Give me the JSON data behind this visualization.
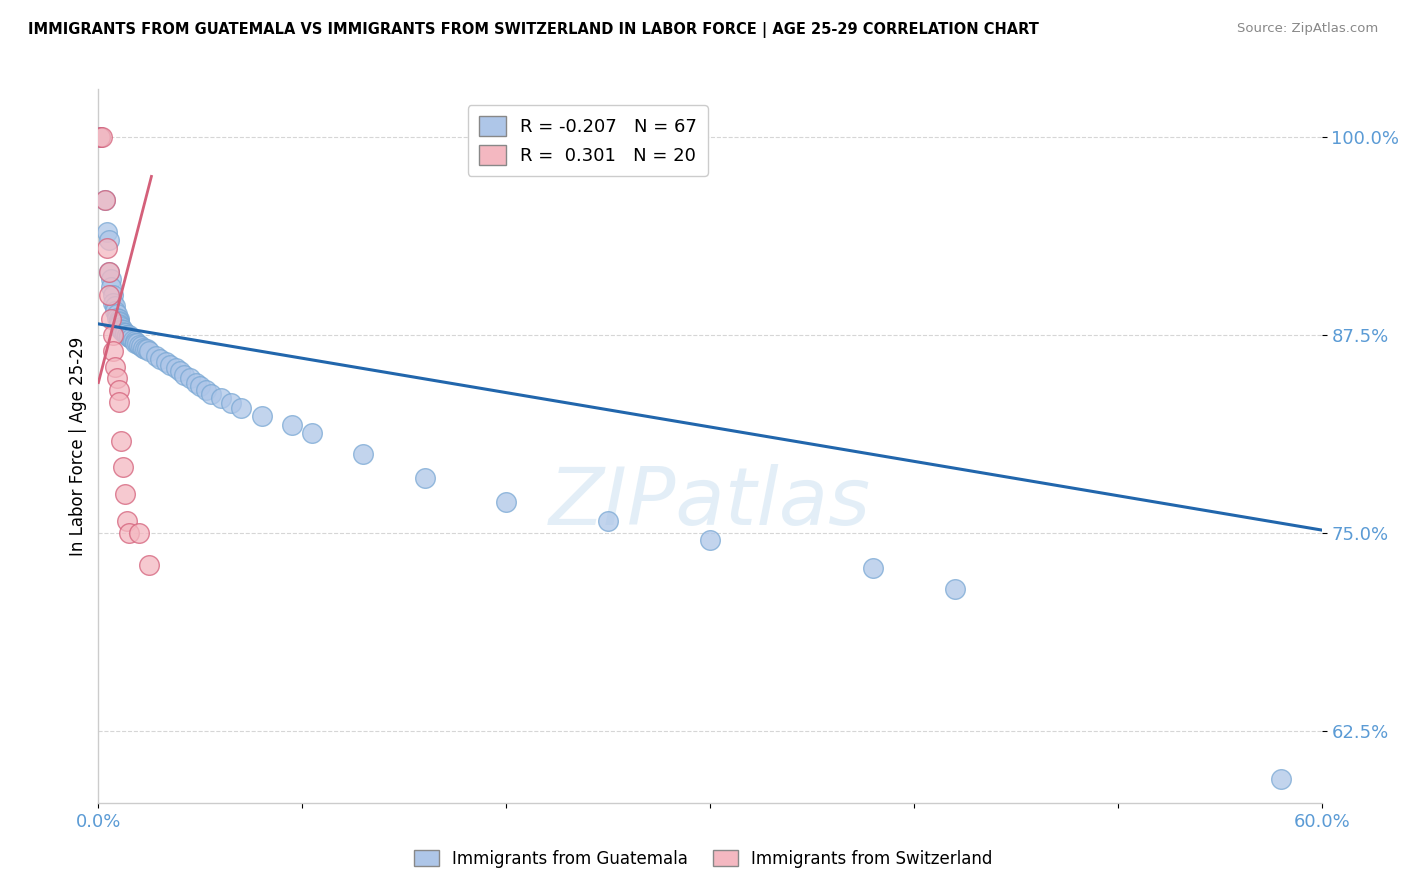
{
  "title": "IMMIGRANTS FROM GUATEMALA VS IMMIGRANTS FROM SWITZERLAND IN LABOR FORCE | AGE 25-29 CORRELATION CHART",
  "source": "Source: ZipAtlas.com",
  "ylabel": "In Labor Force | Age 25-29",
  "watermark": "ZIPatlas",
  "xlim": [
    0.0,
    0.6
  ],
  "ylim": [
    0.58,
    1.03
  ],
  "yticks": [
    0.625,
    0.75,
    0.875,
    1.0
  ],
  "ytick_labels": [
    "62.5%",
    "75.0%",
    "87.5%",
    "100.0%"
  ],
  "xticks": [
    0.0,
    0.1,
    0.2,
    0.3,
    0.4,
    0.5,
    0.6
  ],
  "xtick_labels": [
    "0.0%",
    "",
    "",
    "",
    "",
    "",
    "60.0%"
  ],
  "guatemala_R": -0.207,
  "guatemala_N": 67,
  "switzerland_R": 0.301,
  "switzerland_N": 20,
  "guatemala_color": "#aec6e8",
  "switzerland_color": "#f4b8c1",
  "trendline_blue": "#2166ac",
  "trendline_pink": "#d4607a",
  "axis_color": "#5b9bd5",
  "grid_color": "#cccccc",
  "guatemala_points": [
    [
      0.001,
      1.0
    ],
    [
      0.003,
      0.96
    ],
    [
      0.004,
      0.94
    ],
    [
      0.005,
      0.935
    ],
    [
      0.005,
      0.915
    ],
    [
      0.006,
      0.91
    ],
    [
      0.006,
      0.905
    ],
    [
      0.007,
      0.9
    ],
    [
      0.007,
      0.895
    ],
    [
      0.008,
      0.893
    ],
    [
      0.008,
      0.89
    ],
    [
      0.009,
      0.888
    ],
    [
      0.009,
      0.886
    ],
    [
      0.01,
      0.885
    ],
    [
      0.01,
      0.884
    ],
    [
      0.01,
      0.883
    ],
    [
      0.01,
      0.882
    ],
    [
      0.01,
      0.881
    ],
    [
      0.011,
      0.88
    ],
    [
      0.011,
      0.879
    ],
    [
      0.011,
      0.878
    ],
    [
      0.012,
      0.878
    ],
    [
      0.012,
      0.877
    ],
    [
      0.013,
      0.876
    ],
    [
      0.013,
      0.876
    ],
    [
      0.014,
      0.875
    ],
    [
      0.014,
      0.875
    ],
    [
      0.015,
      0.875
    ],
    [
      0.015,
      0.874
    ],
    [
      0.015,
      0.874
    ],
    [
      0.016,
      0.873
    ],
    [
      0.017,
      0.872
    ],
    [
      0.018,
      0.871
    ],
    [
      0.018,
      0.87
    ],
    [
      0.019,
      0.87
    ],
    [
      0.02,
      0.869
    ],
    [
      0.021,
      0.868
    ],
    [
      0.022,
      0.867
    ],
    [
      0.023,
      0.866
    ],
    [
      0.024,
      0.866
    ],
    [
      0.025,
      0.865
    ],
    [
      0.028,
      0.862
    ],
    [
      0.03,
      0.86
    ],
    [
      0.033,
      0.858
    ],
    [
      0.035,
      0.856
    ],
    [
      0.038,
      0.854
    ],
    [
      0.04,
      0.852
    ],
    [
      0.042,
      0.85
    ],
    [
      0.045,
      0.848
    ],
    [
      0.048,
      0.845
    ],
    [
      0.05,
      0.843
    ],
    [
      0.053,
      0.84
    ],
    [
      0.055,
      0.838
    ],
    [
      0.06,
      0.835
    ],
    [
      0.065,
      0.832
    ],
    [
      0.07,
      0.829
    ],
    [
      0.08,
      0.824
    ],
    [
      0.095,
      0.818
    ],
    [
      0.105,
      0.813
    ],
    [
      0.13,
      0.8
    ],
    [
      0.16,
      0.785
    ],
    [
      0.2,
      0.77
    ],
    [
      0.25,
      0.758
    ],
    [
      0.3,
      0.746
    ],
    [
      0.38,
      0.728
    ],
    [
      0.42,
      0.715
    ],
    [
      0.58,
      0.595
    ]
  ],
  "switzerland_points": [
    [
      0.001,
      1.0
    ],
    [
      0.002,
      1.0
    ],
    [
      0.003,
      0.96
    ],
    [
      0.004,
      0.93
    ],
    [
      0.005,
      0.915
    ],
    [
      0.005,
      0.9
    ],
    [
      0.006,
      0.885
    ],
    [
      0.007,
      0.875
    ],
    [
      0.007,
      0.865
    ],
    [
      0.008,
      0.855
    ],
    [
      0.009,
      0.848
    ],
    [
      0.01,
      0.84
    ],
    [
      0.01,
      0.833
    ],
    [
      0.011,
      0.808
    ],
    [
      0.012,
      0.792
    ],
    [
      0.013,
      0.775
    ],
    [
      0.014,
      0.758
    ],
    [
      0.015,
      0.75
    ],
    [
      0.02,
      0.75
    ],
    [
      0.025,
      0.73
    ]
  ],
  "blue_trendline_x": [
    0.0,
    0.6
  ],
  "blue_trendline_y": [
    0.882,
    0.752
  ],
  "pink_trendline_x": [
    0.0,
    0.026
  ],
  "pink_trendline_y": [
    0.845,
    0.975
  ]
}
